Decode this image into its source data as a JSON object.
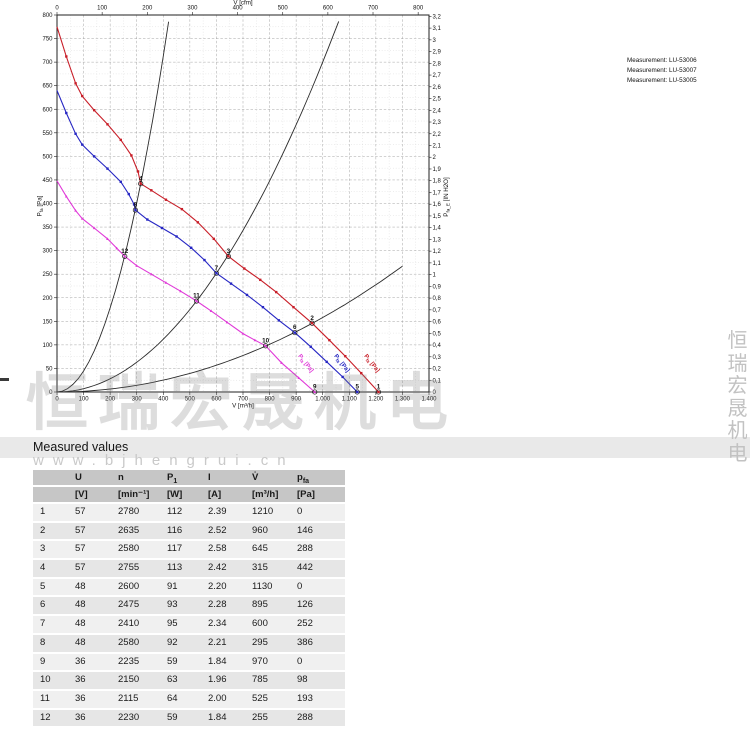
{
  "watermark": {
    "cn": "恒瑞宏晟机电",
    "cn_vertical": "恒瑞宏晟机电",
    "url": "www.bjhengrui.cn"
  },
  "legend": {
    "measurements": [
      "Measurement: LU-53006",
      "Measurement: LU-53007",
      "Measurement: LU-53005"
    ]
  },
  "chart_data": {
    "type": "line",
    "title": "",
    "grid": true,
    "x": {
      "label": "V [m³/h]",
      "min": 0,
      "max": 1400,
      "step": 100,
      "tick_labels": [
        "0",
        "100",
        "200",
        "300",
        "400",
        "500",
        "600",
        "700",
        "800",
        "900",
        "1.000",
        "1.100",
        "1.200",
        "1.300",
        "1.400"
      ]
    },
    "x_top": {
      "label": "V [cfm]",
      "min": 0,
      "max": 800,
      "step": 100
    },
    "y": {
      "label_pre": "P",
      "label_sub": "fa",
      "label_post": " [Pa]",
      "min": 0,
      "max": 800,
      "step": 50
    },
    "y_right": {
      "label_pre": "P",
      "label_sub": "fa_E",
      "label_post": " [IN H2O]",
      "min": 0,
      "max": 3.2,
      "step": 0.1
    },
    "series": [
      {
        "name": "57 V",
        "color": "#c81e28",
        "marker": "square",
        "label": {
          "pre": "P",
          "sub": "fa",
          "post": " [Pa]",
          "x": 364,
          "y": 356,
          "angle": 52
        },
        "points": [
          [
            0,
            775
          ],
          [
            35,
            712
          ],
          [
            70,
            655
          ],
          [
            95,
            628
          ],
          [
            140,
            598
          ],
          [
            190,
            568
          ],
          [
            240,
            535
          ],
          [
            280,
            502
          ],
          [
            305,
            468
          ],
          [
            315,
            442
          ],
          [
            355,
            428
          ],
          [
            410,
            408
          ],
          [
            470,
            388
          ],
          [
            530,
            360
          ],
          [
            590,
            325
          ],
          [
            645,
            288
          ],
          [
            705,
            262
          ],
          [
            765,
            238
          ],
          [
            825,
            212
          ],
          [
            890,
            180
          ],
          [
            960,
            146
          ],
          [
            1025,
            110
          ],
          [
            1085,
            76
          ],
          [
            1145,
            40
          ],
          [
            1210,
            0
          ]
        ]
      },
      {
        "name": "48 V",
        "color": "#2626c3",
        "marker": "square",
        "label": {
          "pre": "P",
          "sub": "fa",
          "post": " [Pa]",
          "x": 334,
          "y": 356,
          "angle": 52
        },
        "points": [
          [
            0,
            640
          ],
          [
            35,
            592
          ],
          [
            70,
            548
          ],
          [
            95,
            525
          ],
          [
            140,
            500
          ],
          [
            190,
            474
          ],
          [
            240,
            446
          ],
          [
            270,
            420
          ],
          [
            290,
            398
          ],
          [
            295,
            386
          ],
          [
            340,
            366
          ],
          [
            395,
            348
          ],
          [
            450,
            330
          ],
          [
            505,
            306
          ],
          [
            555,
            280
          ],
          [
            600,
            252
          ],
          [
            655,
            230
          ],
          [
            715,
            206
          ],
          [
            775,
            180
          ],
          [
            835,
            152
          ],
          [
            895,
            126
          ],
          [
            955,
            96
          ],
          [
            1015,
            64
          ],
          [
            1075,
            32
          ],
          [
            1130,
            0
          ]
        ]
      },
      {
        "name": "36 V",
        "color": "#e038d8",
        "marker": "triangle",
        "label": {
          "pre": "P",
          "sub": "fa",
          "post": " [Pa]",
          "x": 298,
          "y": 356,
          "angle": 52
        },
        "points": [
          [
            0,
            448
          ],
          [
            35,
            415
          ],
          [
            70,
            385
          ],
          [
            95,
            368
          ],
          [
            140,
            348
          ],
          [
            190,
            325
          ],
          [
            225,
            305
          ],
          [
            255,
            288
          ],
          [
            300,
            268
          ],
          [
            355,
            250
          ],
          [
            410,
            232
          ],
          [
            465,
            214
          ],
          [
            525,
            193
          ],
          [
            580,
            172
          ],
          [
            640,
            148
          ],
          [
            700,
            124
          ],
          [
            745,
            110
          ],
          [
            785,
            98
          ],
          [
            845,
            62
          ],
          [
            910,
            30
          ],
          [
            970,
            0
          ]
        ]
      }
    ],
    "load_curves": [
      {
        "k": 0.0044543,
        "v_max": 420
      },
      {
        "k": 0.0007,
        "v_max": 1060
      },
      {
        "k": 0.000158,
        "v_max": 1300
      }
    ],
    "operating_points": [
      {
        "n": 1,
        "v": 1210,
        "p": 0
      },
      {
        "n": 2,
        "v": 960,
        "p": 146
      },
      {
        "n": 3,
        "v": 645,
        "p": 288
      },
      {
        "n": 4,
        "v": 315,
        "p": 442
      },
      {
        "n": 5,
        "v": 1130,
        "p": 0
      },
      {
        "n": 6,
        "v": 895,
        "p": 126
      },
      {
        "n": 7,
        "v": 600,
        "p": 252
      },
      {
        "n": 8,
        "v": 295,
        "p": 386
      },
      {
        "n": 9,
        "v": 970,
        "p": 0
      },
      {
        "n": 10,
        "v": 785,
        "p": 98
      },
      {
        "n": 11,
        "v": 525,
        "p": 193
      },
      {
        "n": 12,
        "v": 255,
        "p": 288
      }
    ]
  },
  "table": {
    "title": "Measured values",
    "columns": [
      {
        "head": "",
        "unit": ""
      },
      {
        "head": "U",
        "unit": "[V]"
      },
      {
        "head": "n",
        "unit": "[min⁻¹]"
      },
      {
        "head": "P",
        "head_sub": "1",
        "unit": "[W]"
      },
      {
        "head": "I",
        "unit": "[A]"
      },
      {
        "head": "V̇",
        "unit": "[m³/h]"
      },
      {
        "head": "p",
        "head_sub": "fa",
        "unit": "[Pa]"
      }
    ],
    "rows": [
      [
        "1",
        "57",
        "2780",
        "112",
        "2.39",
        "1210",
        "0"
      ],
      [
        "2",
        "57",
        "2635",
        "116",
        "2.52",
        "960",
        "146"
      ],
      [
        "3",
        "57",
        "2580",
        "117",
        "2.58",
        "645",
        "288"
      ],
      [
        "4",
        "57",
        "2755",
        "113",
        "2.42",
        "315",
        "442"
      ],
      [
        "5",
        "48",
        "2600",
        "91",
        "2.20",
        "1130",
        "0"
      ],
      [
        "6",
        "48",
        "2475",
        "93",
        "2.28",
        "895",
        "126"
      ],
      [
        "7",
        "48",
        "2410",
        "95",
        "2.34",
        "600",
        "252"
      ],
      [
        "8",
        "48",
        "2580",
        "92",
        "2.21",
        "295",
        "386"
      ],
      [
        "9",
        "36",
        "2235",
        "59",
        "1.84",
        "970",
        "0"
      ],
      [
        "10",
        "36",
        "2150",
        "63",
        "1.96",
        "785",
        "98"
      ],
      [
        "11",
        "36",
        "2115",
        "64",
        "2.00",
        "525",
        "193"
      ],
      [
        "12",
        "36",
        "2230",
        "59",
        "1.84",
        "255",
        "288"
      ]
    ]
  }
}
